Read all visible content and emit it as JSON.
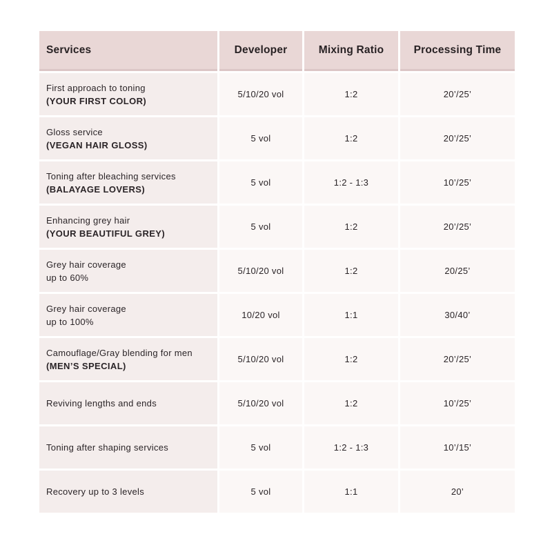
{
  "page": {
    "background": "#ffffff"
  },
  "colors": {
    "header_bg": "#e9d7d6",
    "header_divider": "#dcc6c6",
    "service_cell_bg": "#f4edec",
    "value_cell_bg": "#fbf7f6",
    "cell_gap": "#ffffff",
    "text": "#262123"
  },
  "table": {
    "columns": [
      {
        "label": "Services"
      },
      {
        "label": "Developer"
      },
      {
        "label": "Mixing Ratio"
      },
      {
        "label": "Processing Time"
      }
    ],
    "rows": [
      {
        "service": "First approach to toning",
        "service_bold_sub": "(YOUR FIRST COLOR)",
        "developer": "5/10/20 vol",
        "mixing_ratio": "1:2",
        "processing_time": "20’/25’"
      },
      {
        "service": "Gloss service",
        "service_bold_sub": "(VEGAN HAIR GLOSS)",
        "developer": "5 vol",
        "mixing_ratio": "1:2",
        "processing_time": "20’/25’"
      },
      {
        "service": "Toning after bleaching services",
        "service_bold_sub": "(BALAYAGE LOVERS)",
        "developer": "5 vol",
        "mixing_ratio": "1:2 - 1:3",
        "processing_time": "10’/25’"
      },
      {
        "service": "Enhancing grey hair",
        "service_bold_sub": "(YOUR BEAUTIFUL GREY)",
        "developer": "5 vol",
        "mixing_ratio": "1:2",
        "processing_time": "20’/25’"
      },
      {
        "service": "Grey hair coverage",
        "service_line2": "up to 60%",
        "developer": "5/10/20 vol",
        "mixing_ratio": "1:2",
        "processing_time": "20/25’"
      },
      {
        "service": "Grey hair coverage",
        "service_line2": "up to 100%",
        "developer": "10/20 vol",
        "mixing_ratio": "1:1",
        "processing_time": "30/40’"
      },
      {
        "service": "Camouflage/Gray blending for men",
        "service_bold_sub": "(MEN’S SPECIAL)",
        "developer": "5/10/20 vol",
        "mixing_ratio": "1:2",
        "processing_time": "20’/25’"
      },
      {
        "service": "Reviving lengths and ends",
        "developer": "5/10/20 vol",
        "mixing_ratio": "1:2",
        "processing_time": "10’/25’"
      },
      {
        "service": "Toning after shaping services",
        "developer": "5 vol",
        "mixing_ratio": "1:2 - 1:3",
        "processing_time": "10’/15’"
      },
      {
        "service": "Recovery up to 3 levels",
        "developer": "5 vol",
        "mixing_ratio": "1:1",
        "processing_time": "20’"
      }
    ]
  },
  "chart_data": {
    "type": "table",
    "columns": [
      "Services",
      "Developer",
      "Mixing Ratio",
      "Processing Time"
    ],
    "rows": [
      [
        "First approach to toning (YOUR FIRST COLOR)",
        "5/10/20 vol",
        "1:2",
        "20’/25’"
      ],
      [
        "Gloss service (VEGAN HAIR GLOSS)",
        "5 vol",
        "1:2",
        "20’/25’"
      ],
      [
        "Toning after bleaching services (BALAYAGE LOVERS)",
        "5 vol",
        "1:2 - 1:3",
        "10’/25’"
      ],
      [
        "Enhancing grey hair (YOUR BEAUTIFUL GREY)",
        "5 vol",
        "1:2",
        "20’/25’"
      ],
      [
        "Grey hair coverage up to 60%",
        "5/10/20 vol",
        "1:2",
        "20/25’"
      ],
      [
        "Grey hair coverage up to 100%",
        "10/20 vol",
        "1:1",
        "30/40’"
      ],
      [
        "Camouflage/Gray blending for men (MEN’S SPECIAL)",
        "5/10/20 vol",
        "1:2",
        "20’/25’"
      ],
      [
        "Reviving lengths and ends",
        "5/10/20 vol",
        "1:2",
        "10’/25’"
      ],
      [
        "Toning after shaping services",
        "5 vol",
        "1:2 - 1:3",
        "10’/15’"
      ],
      [
        "Recovery up to 3 levels",
        "5 vol",
        "1:1",
        "20’"
      ]
    ]
  }
}
